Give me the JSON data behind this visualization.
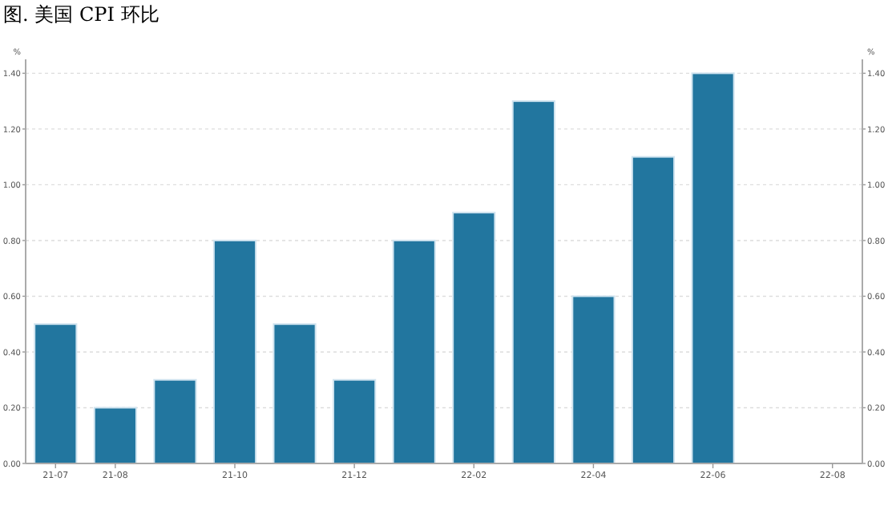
{
  "chart_data": {
    "type": "bar",
    "title": "图. 美国 CPI 环比",
    "categories": [
      "21-07",
      "21-08",
      null,
      "21-10",
      null,
      "21-12",
      null,
      "22-02",
      null,
      "22-04",
      null,
      "22-06",
      null,
      "22-08"
    ],
    "values": [
      0.5,
      0.2,
      0.3,
      0.8,
      0.5,
      0.3,
      0.8,
      0.9,
      1.3,
      0.6,
      1.1,
      1.4,
      null,
      null
    ],
    "color": "#22769f",
    "ylabel": "%",
    "y2label": "%",
    "ylim": [
      0,
      1.45
    ],
    "yticks": [
      {
        "value": 0,
        "label": "0.00"
      },
      {
        "value": 0.2,
        "label": "0.20"
      },
      {
        "value": 0.4,
        "label": "0.40"
      },
      {
        "value": 0.6,
        "label": "0.60"
      },
      {
        "value": 0.8,
        "label": "0.80"
      },
      {
        "value": 1.0,
        "label": "1.00"
      },
      {
        "value": 1.2,
        "label": "1.20"
      },
      {
        "value": 1.4,
        "label": "1.40"
      }
    ],
    "y2lim": [
      0,
      1.45
    ],
    "y2ticks": [
      {
        "value": 0,
        "label": "0.00"
      },
      {
        "value": 0.2,
        "label": "0.20"
      },
      {
        "value": 0.4,
        "label": "0.40"
      },
      {
        "value": 0.6,
        "label": "0.60"
      },
      {
        "value": 0.8,
        "label": "0.80"
      },
      {
        "value": 1.0,
        "label": "1.00"
      },
      {
        "value": 1.2,
        "label": "1.20"
      },
      {
        "value": 1.4,
        "label": "1.40"
      }
    ],
    "grid": "y"
  }
}
